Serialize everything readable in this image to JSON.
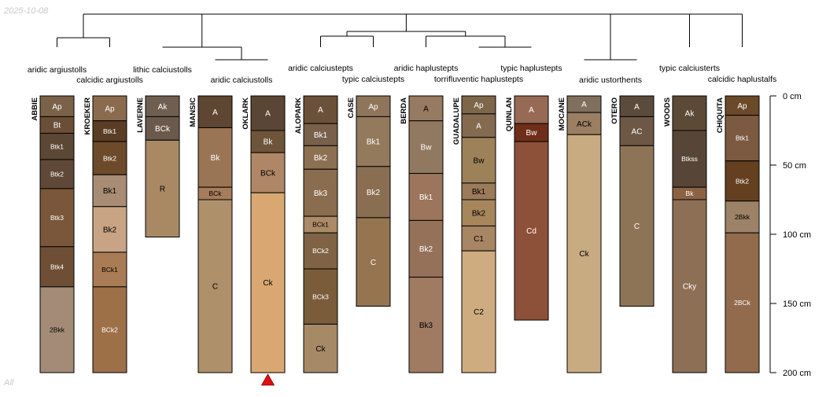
{
  "date_stamp": "2025-10-08",
  "subset_label": "All",
  "chart_data": {
    "type": "soil-profile-sketch",
    "depth_unit": "cm",
    "depth_axis": {
      "ticks": [
        0,
        50,
        100,
        150,
        200
      ],
      "tick_labels": [
        "0 cm",
        "50 cm",
        "100 cm",
        "150 cm",
        "200 cm"
      ],
      "max": 200
    },
    "profiles": [
      {
        "id": "ABBIE",
        "horizons": [
          {
            "name": "Ap",
            "top": 0,
            "bottom": 15,
            "color": "#7a6248"
          },
          {
            "name": "Bt",
            "top": 15,
            "bottom": 27,
            "color": "#6a4e36"
          },
          {
            "name": "Btk1",
            "top": 27,
            "bottom": 46,
            "color": "#5c4634"
          },
          {
            "name": "Btk2",
            "top": 46,
            "bottom": 67,
            "color": "#5f4837"
          },
          {
            "name": "Btk3",
            "top": 67,
            "bottom": 109,
            "color": "#7a573b"
          },
          {
            "name": "Btk4",
            "top": 109,
            "bottom": 138,
            "color": "#6e4f35"
          },
          {
            "name": "2Bkk",
            "top": 138,
            "bottom": 200,
            "color": "#a38b77"
          }
        ]
      },
      {
        "id": "KROEKER",
        "horizons": [
          {
            "name": "Ap",
            "top": 0,
            "bottom": 18,
            "color": "#8b6b4e"
          },
          {
            "name": "Btk1",
            "top": 18,
            "bottom": 33,
            "color": "#5a3d25"
          },
          {
            "name": "Btk2",
            "top": 33,
            "bottom": 57,
            "color": "#6d4b2a"
          },
          {
            "name": "Bk1",
            "top": 57,
            "bottom": 80,
            "color": "#a88c74"
          },
          {
            "name": "Bk2",
            "top": 80,
            "bottom": 113,
            "color": "#c9a484"
          },
          {
            "name": "BCk1",
            "top": 113,
            "bottom": 138,
            "color": "#aa7c55"
          },
          {
            "name": "BCk2",
            "top": 138,
            "bottom": 200,
            "color": "#9e7048"
          }
        ]
      },
      {
        "id": "LAVERNE",
        "horizons": [
          {
            "name": "Ak",
            "top": 0,
            "bottom": 15,
            "color": "#6f5f51"
          },
          {
            "name": "BCk",
            "top": 15,
            "bottom": 32,
            "color": "#6b5a4c"
          },
          {
            "name": "R",
            "top": 32,
            "bottom": 102,
            "color": "#a88964"
          }
        ]
      },
      {
        "id": "MANSIC",
        "horizons": [
          {
            "name": "A",
            "top": 0,
            "bottom": 23,
            "color": "#5e4632"
          },
          {
            "name": "Bk",
            "top": 23,
            "bottom": 66,
            "color": "#9a7555"
          },
          {
            "name": "BCk",
            "top": 66,
            "bottom": 75,
            "color": "#a67c5c"
          },
          {
            "name": "C",
            "top": 75,
            "bottom": 200,
            "color": "#ae906a"
          }
        ]
      },
      {
        "id": "OKLARK",
        "highlight": true,
        "horizons": [
          {
            "name": "A",
            "top": 0,
            "bottom": 25,
            "color": "#5a4634"
          },
          {
            "name": "Bk",
            "top": 25,
            "bottom": 41,
            "color": "#6e5539"
          },
          {
            "name": "BCk",
            "top": 41,
            "bottom": 70,
            "color": "#b08766"
          },
          {
            "name": "Ck",
            "top": 70,
            "bottom": 200,
            "color": "#d9a872"
          }
        ]
      },
      {
        "id": "ALOPARK",
        "horizons": [
          {
            "name": "A",
            "top": 0,
            "bottom": 20,
            "color": "#6b5139"
          },
          {
            "name": "Bk1",
            "top": 20,
            "bottom": 36,
            "color": "#79604b"
          },
          {
            "name": "Bk2",
            "top": 36,
            "bottom": 53,
            "color": "#8d6f52"
          },
          {
            "name": "Bk3",
            "top": 53,
            "bottom": 87,
            "color": "#8a6d4e"
          },
          {
            "name": "BCk1",
            "top": 87,
            "bottom": 99,
            "color": "#ac8a67"
          },
          {
            "name": "BCk2",
            "top": 99,
            "bottom": 125,
            "color": "#7f6344"
          },
          {
            "name": "BCk3",
            "top": 125,
            "bottom": 165,
            "color": "#7a5c3b"
          },
          {
            "name": "Ck",
            "top": 165,
            "bottom": 200,
            "color": "#a68966"
          }
        ]
      },
      {
        "id": "CASE",
        "horizons": [
          {
            "name": "Ap",
            "top": 0,
            "bottom": 15,
            "color": "#8f7559"
          },
          {
            "name": "Bk1",
            "top": 15,
            "bottom": 51,
            "color": "#937a5d"
          },
          {
            "name": "Bk2",
            "top": 51,
            "bottom": 88,
            "color": "#8a6e51"
          },
          {
            "name": "C",
            "top": 88,
            "bottom": 152,
            "color": "#947550"
          }
        ]
      },
      {
        "id": "BERDA",
        "horizons": [
          {
            "name": "A",
            "top": 0,
            "bottom": 18,
            "color": "#977a62"
          },
          {
            "name": "Bw",
            "top": 18,
            "bottom": 56,
            "color": "#917860"
          },
          {
            "name": "Bk1",
            "top": 56,
            "bottom": 90,
            "color": "#9c755c"
          },
          {
            "name": "Bk2",
            "top": 90,
            "bottom": 131,
            "color": "#95715a"
          },
          {
            "name": "Bk3",
            "top": 131,
            "bottom": 200,
            "color": "#a07b62"
          }
        ]
      },
      {
        "id": "GUADALUPE",
        "horizons": [
          {
            "name": "Ap",
            "top": 0,
            "bottom": 13,
            "color": "#7e6649"
          },
          {
            "name": "A",
            "top": 13,
            "bottom": 30,
            "color": "#846b50"
          },
          {
            "name": "Bw",
            "top": 30,
            "bottom": 63,
            "color": "#9d8159"
          },
          {
            "name": "Bk1",
            "top": 63,
            "bottom": 75,
            "color": "#9b7b59"
          },
          {
            "name": "Bk2",
            "top": 75,
            "bottom": 94,
            "color": "#a8865c"
          },
          {
            "name": "C1",
            "top": 94,
            "bottom": 112,
            "color": "#a88563"
          },
          {
            "name": "C2",
            "top": 112,
            "bottom": 200,
            "color": "#cfac80"
          }
        ]
      },
      {
        "id": "QUINLAN",
        "horizons": [
          {
            "name": "A",
            "top": 0,
            "bottom": 20,
            "color": "#976a55"
          },
          {
            "name": "Bw",
            "top": 20,
            "bottom": 33,
            "color": "#6e2e1a"
          },
          {
            "name": "Cd",
            "top": 33,
            "bottom": 162,
            "color": "#8d5039"
          }
        ]
      },
      {
        "id": "MOCANE",
        "horizons": [
          {
            "name": "A",
            "top": 0,
            "bottom": 12,
            "color": "#7f6f5d"
          },
          {
            "name": "ACk",
            "top": 12,
            "bottom": 28,
            "color": "#9a7f62"
          },
          {
            "name": "Ck",
            "top": 28,
            "bottom": 200,
            "color": "#c9ab82"
          }
        ]
      },
      {
        "id": "OTERO",
        "horizons": [
          {
            "name": "A",
            "top": 0,
            "bottom": 15,
            "color": "#5a4b3c"
          },
          {
            "name": "AC",
            "top": 15,
            "bottom": 36,
            "color": "#6d5846"
          },
          {
            "name": "C",
            "top": 36,
            "bottom": 152,
            "color": "#8e7457"
          }
        ]
      },
      {
        "id": "WOODS",
        "horizons": [
          {
            "name": "Ak",
            "top": 0,
            "bottom": 25,
            "color": "#5c4a37"
          },
          {
            "name": "Btkss",
            "top": 25,
            "bottom": 66,
            "color": "#574637"
          },
          {
            "name": "Bk",
            "top": 66,
            "bottom": 75,
            "color": "#8b6343"
          },
          {
            "name": "Cky",
            "top": 75,
            "bottom": 200,
            "color": "#8d6f55"
          }
        ]
      },
      {
        "id": "CHIQUITA",
        "horizons": [
          {
            "name": "Ap",
            "top": 0,
            "bottom": 14,
            "color": "#6b4a2a"
          },
          {
            "name": "Btk1",
            "top": 14,
            "bottom": 47,
            "color": "#7b5a41"
          },
          {
            "name": "Btk2",
            "top": 47,
            "bottom": 76,
            "color": "#643f20"
          },
          {
            "name": "2Bkk",
            "top": 76,
            "bottom": 99,
            "color": "#9d8267"
          },
          {
            "name": "2BCk",
            "top": 99,
            "bottom": 200,
            "color": "#926b4d"
          }
        ]
      }
    ],
    "taxonomic_groups": [
      {
        "label": "aridic argiustolls",
        "members": [
          "ABBIE"
        ]
      },
      {
        "label": "calcidic argiustolls",
        "members": [
          "KROEKER"
        ]
      },
      {
        "label": "lithic calciustolls",
        "members": [
          "LAVERNE"
        ]
      },
      {
        "label": "aridic calciustolls",
        "members": [
          "MANSIC",
          "OKLARK"
        ]
      },
      {
        "label": "aridic calciustepts",
        "members": [
          "ALOPARK"
        ]
      },
      {
        "label": "typic calciustepts",
        "members": [
          "CASE"
        ]
      },
      {
        "label": "aridic haplustepts",
        "members": [
          "BERDA"
        ]
      },
      {
        "label": "torrifluventic haplustepts",
        "members": [
          "GUADALUPE"
        ]
      },
      {
        "label": "typic haplustepts",
        "members": [
          "QUINLAN"
        ]
      },
      {
        "label": "aridic ustorthents",
        "members": [
          "MOCANE",
          "OTERO"
        ]
      },
      {
        "label": "typic calciusterts",
        "members": [
          "WOODS"
        ]
      },
      {
        "label": "calcidic haplustalfs",
        "members": [
          "CHIQUITA"
        ]
      }
    ],
    "highlight_marker": {
      "profile": "OKLARK",
      "symbol": "red-triangle",
      "color": "#e01010"
    }
  }
}
